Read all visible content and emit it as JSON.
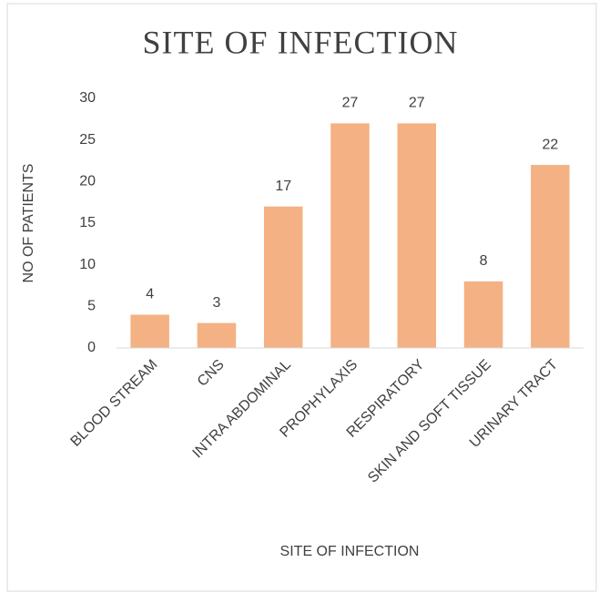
{
  "chart_data": {
    "type": "bar",
    "title": "SITE OF INFECTION",
    "x_label": "SITE OF INFECTION",
    "y_label": "NO OF PATIENTS",
    "categories": [
      "BLOOD STREAM",
      "CNS",
      "INTRA ABDOMINAL",
      "PROPHYLAXIS",
      "RESPIRATORY",
      "SKIN AND SOFT TISSUE",
      "URINARY TRACT"
    ],
    "values": [
      4,
      3,
      17,
      27,
      27,
      8,
      22
    ],
    "color": "#f4b183",
    "ylim": [
      0,
      30
    ],
    "yticks": [
      0,
      5,
      10,
      15,
      20,
      25,
      30
    ],
    "grid": false,
    "value_labels_shown": true
  }
}
